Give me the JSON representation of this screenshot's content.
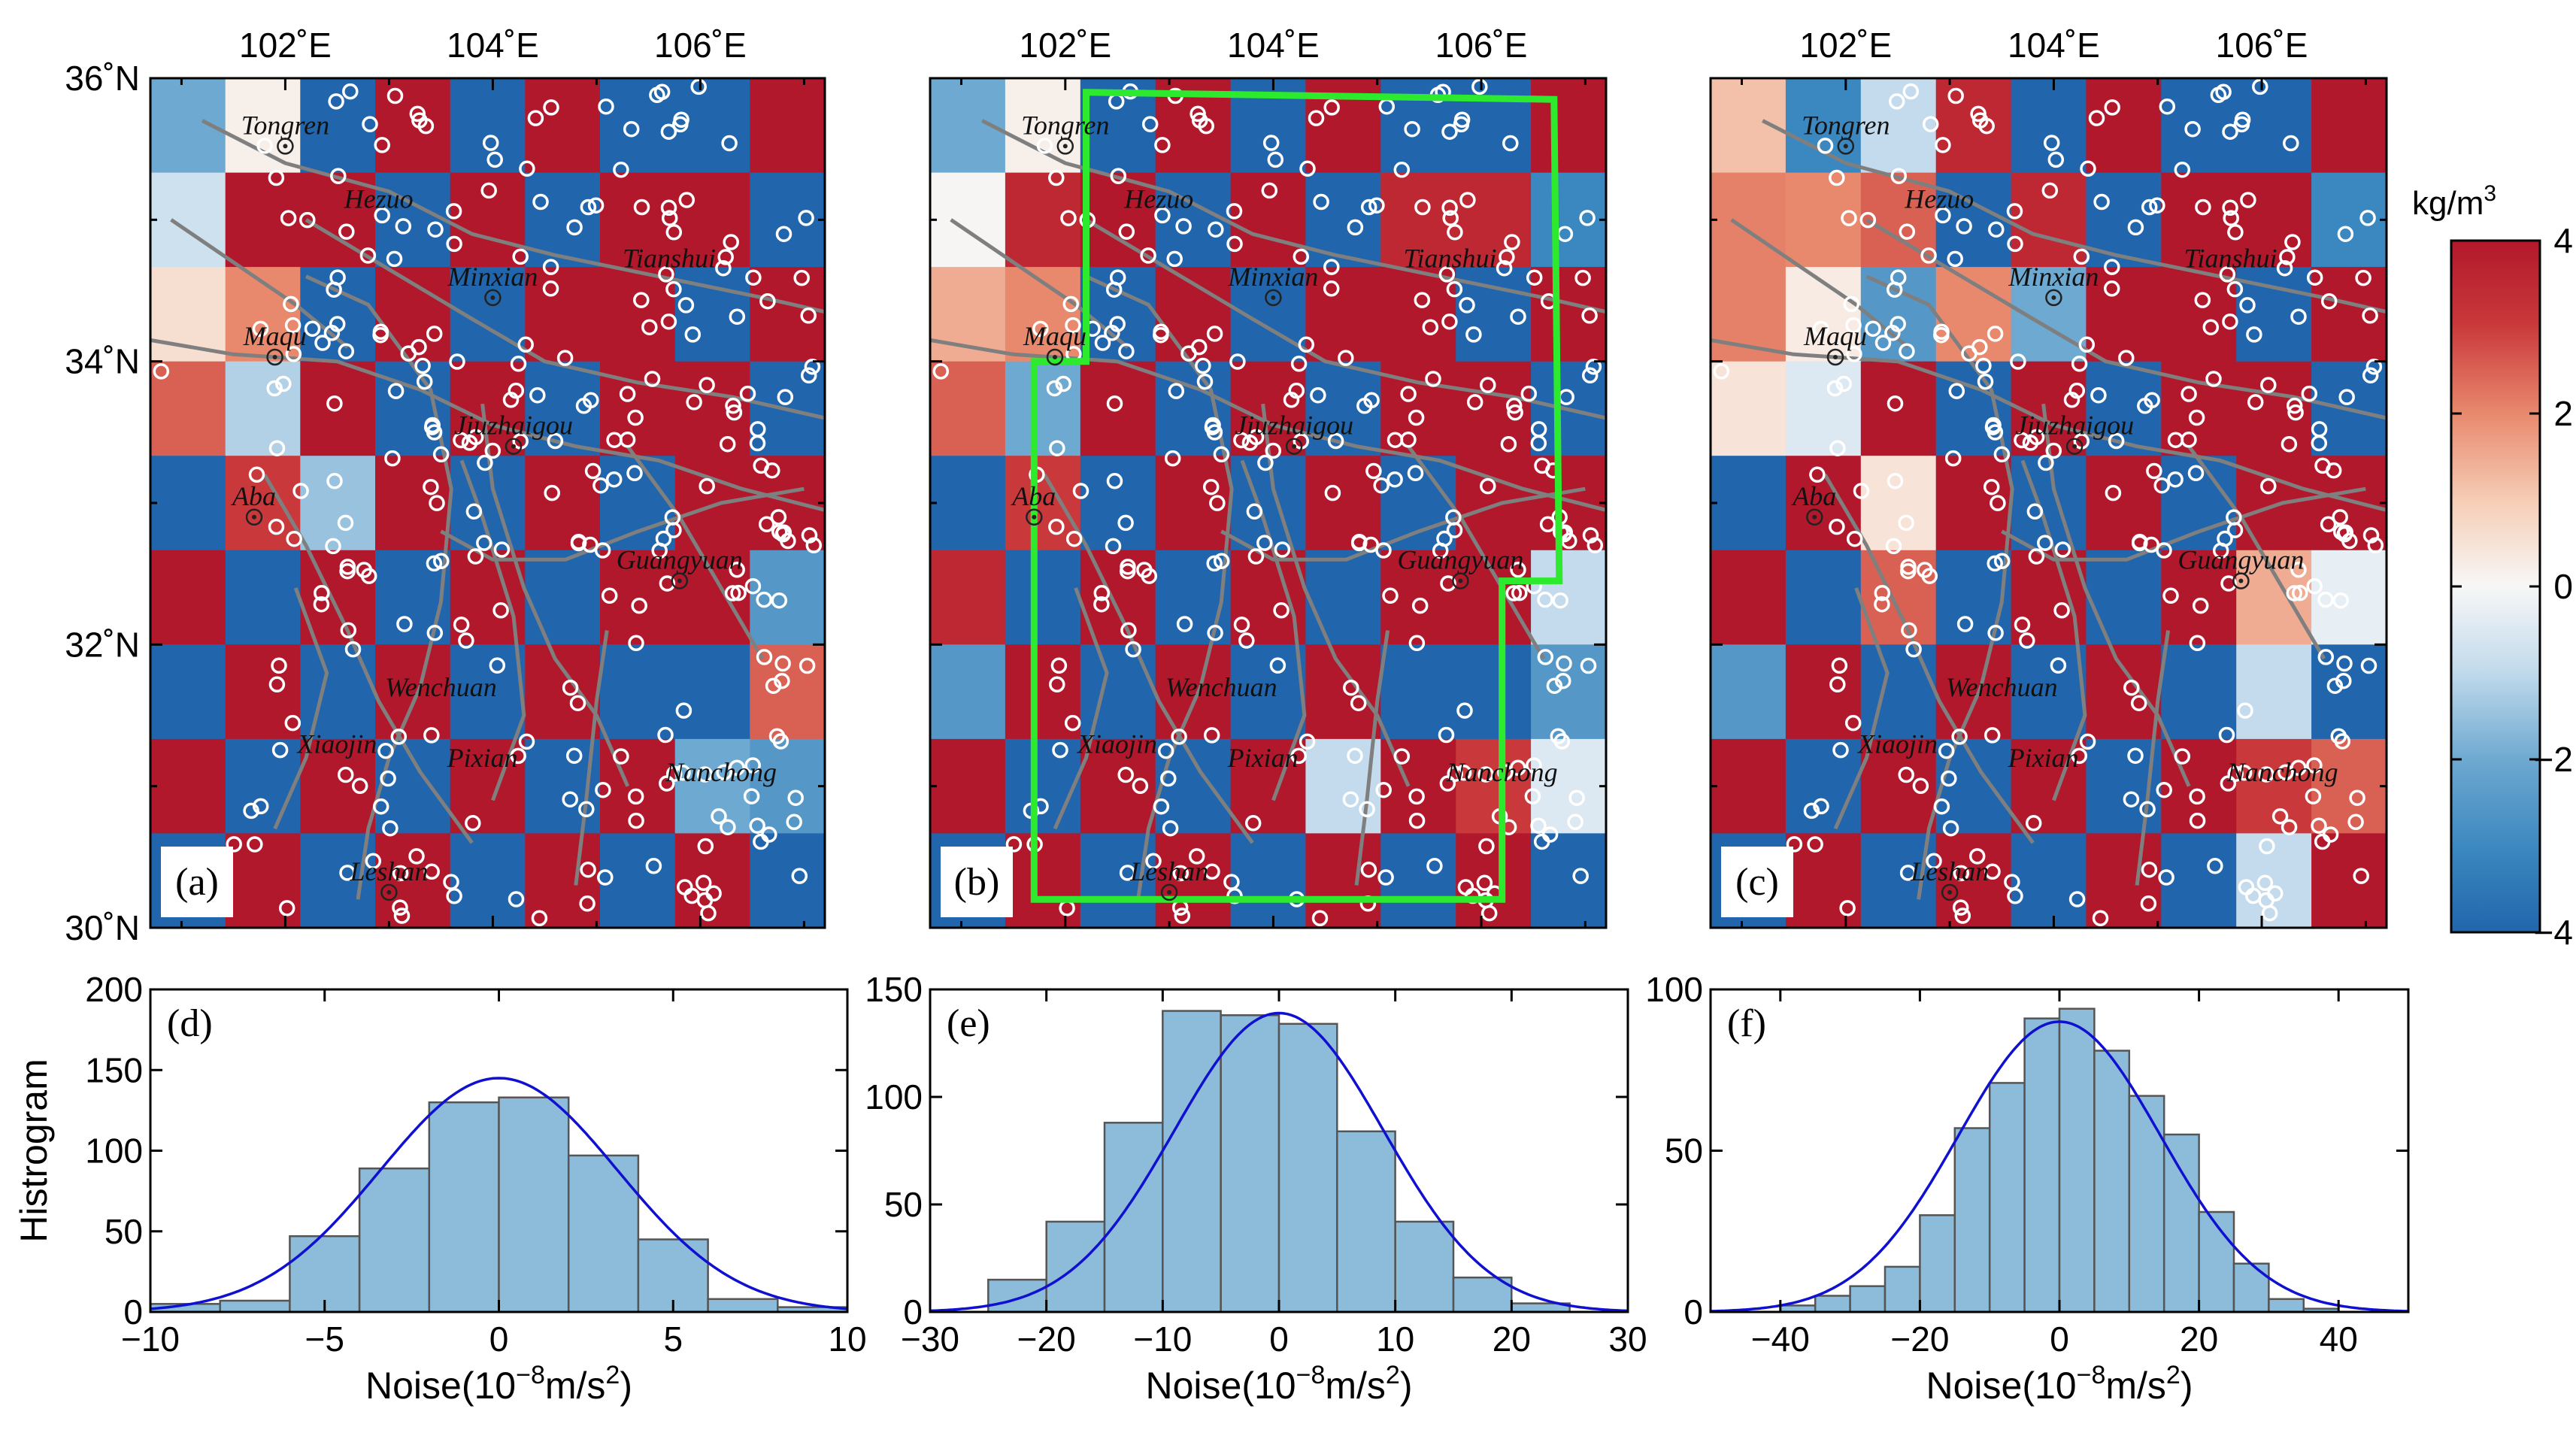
{
  "colors": {
    "high": "#b2182b",
    "low": "#2166ac",
    "hist_fill": "#8cbcd9",
    "hist_edge": "#555555",
    "fit_line": "#1010d0",
    "region_box": "#2eea2e",
    "station_ring": "#ffffff",
    "fault_line": "#7f7f7f"
  },
  "colorbar": {
    "unit_base": "kg/m",
    "unit_exp": "3",
    "min": -4,
    "max": 4,
    "ticks": [
      "4",
      "2",
      "0",
      "−2",
      "−4"
    ]
  },
  "map_axes": {
    "lon_range": [
      100.7,
      107.2
    ],
    "lat_range": [
      30.0,
      36.0
    ],
    "lon_ticks": [
      {
        "value": 102,
        "label": "102˚E"
      },
      {
        "value": 104,
        "label": "104˚E"
      },
      {
        "value": 106,
        "label": "106˚E"
      }
    ],
    "lat_ticks": [
      {
        "value": 36,
        "label": "36˚N"
      },
      {
        "value": 34,
        "label": "34˚N"
      },
      {
        "value": 32,
        "label": "32˚N"
      },
      {
        "value": 30,
        "label": "30˚N"
      }
    ]
  },
  "places": [
    {
      "name": "Tongren",
      "lon": 102.0,
      "lat": 35.52,
      "marker": true
    },
    {
      "name": "Hezuo",
      "lon": 102.9,
      "lat": 35.0,
      "marker": false
    },
    {
      "name": "Minxian",
      "lon": 104.0,
      "lat": 34.45,
      "marker": true
    },
    {
      "name": "Tianshui",
      "lon": 105.7,
      "lat": 34.58,
      "marker": false
    },
    {
      "name": "Maqu",
      "lon": 101.9,
      "lat": 34.03,
      "marker": true
    },
    {
      "name": "Jiuzhaigou",
      "lon": 104.2,
      "lat": 33.4,
      "marker": true
    },
    {
      "name": "Aba",
      "lon": 101.7,
      "lat": 32.9,
      "marker": true
    },
    {
      "name": "Guangyuan",
      "lon": 105.8,
      "lat": 32.45,
      "marker": true
    },
    {
      "name": "Wenchuan",
      "lon": 103.5,
      "lat": 31.55,
      "marker": false
    },
    {
      "name": "Xiaojin",
      "lon": 102.5,
      "lat": 31.15,
      "marker": false
    },
    {
      "name": "Pixian",
      "lon": 103.9,
      "lat": 31.05,
      "marker": false
    },
    {
      "name": "Nanchong",
      "lon": 106.2,
      "lat": 30.95,
      "marker": false
    },
    {
      "name": "Leshan",
      "lon": 103.0,
      "lat": 30.25,
      "marker": true
    }
  ],
  "chart_data": [
    {
      "type": "heatmap",
      "panel": "(a)",
      "rows": 9,
      "cols": 9,
      "lon_extent": [
        100.7,
        107.2
      ],
      "lat_extent": [
        30.0,
        36.0
      ],
      "value_range": [
        -4,
        4
      ],
      "values": [
        [
          -2,
          0.2,
          -4,
          4,
          -4,
          4,
          -4,
          -4,
          4
        ],
        [
          -0.8,
          4,
          4,
          -4,
          4,
          -4,
          4,
          4,
          -4
        ],
        [
          0.6,
          2,
          -4,
          4,
          -4,
          4,
          4,
          -4,
          4
        ],
        [
          2.5,
          -1.2,
          4,
          -4,
          4,
          -4,
          4,
          4,
          -4
        ],
        [
          -4,
          3,
          -1.5,
          4,
          -4,
          4,
          -4,
          4,
          4
        ],
        [
          4,
          -4,
          4,
          -4,
          4,
          -4,
          4,
          4,
          -2.5
        ],
        [
          -4,
          4,
          -4,
          4,
          -4,
          4,
          -4,
          -4,
          2.5
        ],
        [
          4,
          -4,
          4,
          -4,
          4,
          -4,
          4,
          -2,
          -2.5
        ],
        [
          -4,
          4,
          -4,
          4,
          -4,
          4,
          -4,
          4,
          -4
        ]
      ]
    },
    {
      "type": "heatmap",
      "panel": "(b)",
      "rows": 9,
      "cols": 9,
      "lon_extent": [
        100.7,
        107.2
      ],
      "lat_extent": [
        30.0,
        36.0
      ],
      "value_range": [
        -4,
        4
      ],
      "values": [
        [
          -2,
          0.2,
          -4,
          4,
          -4,
          4,
          -4,
          -4,
          4
        ],
        [
          0.05,
          3.5,
          4,
          -4,
          4,
          -4,
          3.5,
          3.5,
          -3
        ],
        [
          1.5,
          2,
          -4,
          4,
          -4,
          4,
          4,
          -4,
          4
        ],
        [
          2.5,
          -2,
          4,
          -4,
          4,
          -4,
          4,
          4,
          -4
        ],
        [
          -4,
          3,
          -4,
          4,
          -4,
          4,
          -4,
          4,
          4
        ],
        [
          3.5,
          -4,
          4,
          -4,
          4,
          -4,
          4,
          4,
          -1
        ],
        [
          -2.5,
          4,
          -4,
          4,
          -4,
          4,
          -4,
          -4,
          -2.5
        ],
        [
          4,
          -4,
          4,
          -4,
          4,
          -1,
          4,
          3,
          -0.5
        ],
        [
          -4,
          4,
          -4,
          4,
          -4,
          4,
          -4,
          4,
          -4
        ]
      ],
      "region_polygon_lonlat": [
        [
          102.2,
          35.9
        ],
        [
          106.7,
          35.85
        ],
        [
          106.75,
          32.45
        ],
        [
          106.2,
          32.45
        ],
        [
          106.2,
          30.2
        ],
        [
          101.7,
          30.2
        ],
        [
          101.7,
          34.0
        ],
        [
          102.2,
          34.0
        ]
      ]
    },
    {
      "type": "heatmap",
      "panel": "(c)",
      "rows": 9,
      "cols": 9,
      "lon_extent": [
        100.7,
        107.2
      ],
      "lat_extent": [
        30.0,
        36.0
      ],
      "value_range": [
        -4,
        4
      ],
      "values": [
        [
          1.2,
          -3,
          -1,
          3.5,
          -4,
          4,
          -4,
          -4,
          4
        ],
        [
          2.1,
          2,
          2.5,
          -4,
          3.5,
          -4,
          4,
          4,
          -3
        ],
        [
          2.1,
          0.3,
          -2.5,
          2,
          -2,
          4,
          4,
          -4,
          4
        ],
        [
          0.5,
          -0.5,
          4,
          -4,
          4,
          -4,
          4,
          4,
          -4
        ],
        [
          -4,
          4,
          0.5,
          4,
          -4,
          4,
          -4,
          4,
          4
        ],
        [
          4,
          -4,
          2.5,
          -4,
          4,
          -4,
          4,
          1.5,
          -0.3
        ],
        [
          -2.5,
          4,
          -4,
          4,
          -4,
          4,
          -4,
          -1,
          -4
        ],
        [
          4,
          -4,
          4,
          -4,
          4,
          -4,
          4,
          3,
          2.5
        ],
        [
          -4,
          4,
          -4,
          4,
          -4,
          4,
          -4,
          -1,
          4
        ]
      ]
    },
    {
      "type": "bar",
      "panel": "(d)",
      "ylabel": "Histrogram",
      "xlabel_base": "Noise(10",
      "xlabel_exp": "−8",
      "xlabel_tail": "m/s",
      "xlabel_exp2": "2",
      "xlabel_close": ")",
      "xlim": [
        -10,
        10
      ],
      "ylim": [
        0,
        200
      ],
      "xticks": [
        -10,
        -5,
        0,
        5,
        10
      ],
      "yticks": [
        0,
        50,
        100,
        150,
        200
      ],
      "bin_edges": [
        -10,
        -8,
        -6,
        -4,
        -2,
        0,
        2,
        4,
        6,
        8,
        10
      ],
      "counts": [
        5,
        7,
        47,
        89,
        130,
        133,
        97,
        45,
        8,
        3
      ],
      "fit": {
        "mu": 0,
        "sigma": 3.4,
        "peak": 145
      }
    },
    {
      "type": "bar",
      "panel": "(e)",
      "ylabel": "",
      "xlabel_base": "Noise(10",
      "xlabel_exp": "−8",
      "xlabel_tail": "m/s",
      "xlabel_exp2": "2",
      "xlabel_close": ")",
      "xlim": [
        -30,
        30
      ],
      "ylim": [
        0,
        150
      ],
      "xticks": [
        -30,
        -20,
        -10,
        0,
        10,
        20,
        30
      ],
      "yticks": [
        0,
        50,
        100,
        150
      ],
      "bin_edges": [
        -25,
        -20,
        -15,
        -10,
        -5,
        0,
        5,
        10,
        15,
        20,
        25
      ],
      "counts": [
        15,
        42,
        88,
        140,
        138,
        134,
        84,
        42,
        16,
        4
      ],
      "fit": {
        "mu": 0,
        "sigma": 9.0,
        "peak": 139
      }
    },
    {
      "type": "bar",
      "panel": "(f)",
      "ylabel": "",
      "xlabel_base": "Noise(10",
      "xlabel_exp": "−8",
      "xlabel_tail": "m/s",
      "xlabel_exp2": "2",
      "xlabel_close": ")",
      "xlim": [
        -50,
        50
      ],
      "ylim": [
        0,
        100
      ],
      "xticks": [
        -40,
        -20,
        0,
        20,
        40
      ],
      "yticks": [
        0,
        50,
        100
      ],
      "bin_edges": [
        -40,
        -35,
        -30,
        -25,
        -20,
        -15,
        -10,
        -5,
        0,
        5,
        10,
        15,
        20,
        25,
        30,
        35,
        40
      ],
      "counts": [
        2,
        5,
        8,
        14,
        30,
        57,
        71,
        91,
        94,
        81,
        67,
        55,
        31,
        15,
        4,
        1
      ],
      "fit": {
        "mu": 0,
        "sigma": 14.5,
        "peak": 90
      }
    }
  ]
}
